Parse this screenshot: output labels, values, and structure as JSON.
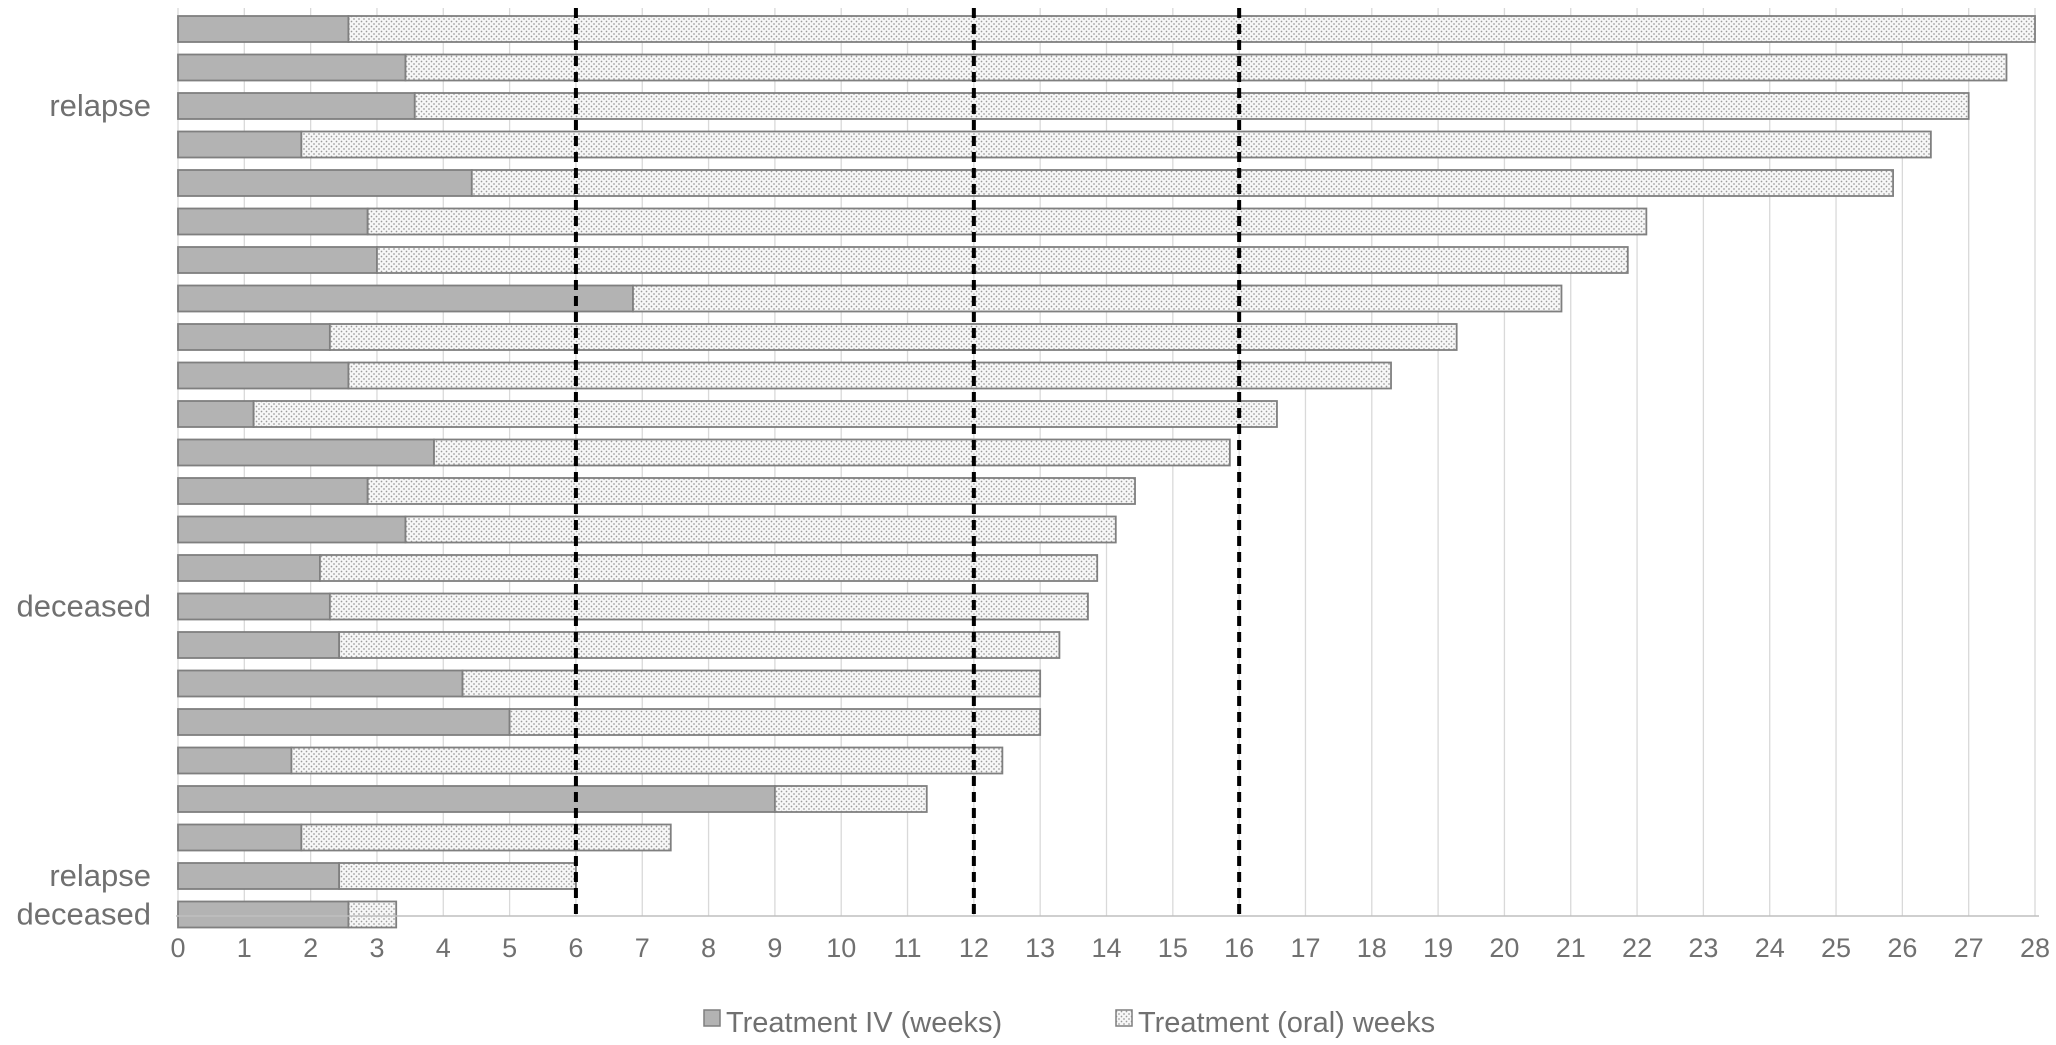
{
  "chart_data": {
    "type": "bar",
    "orientation": "horizontal",
    "stacked": true,
    "title": "",
    "xlabel": "",
    "ylabel": "",
    "xlim": [
      0,
      28
    ],
    "x_ticks": [
      "0",
      "1",
      "2",
      "3",
      "4",
      "5",
      "6",
      "7",
      "8",
      "9",
      "10",
      "11",
      "12",
      "13",
      "14",
      "15",
      "16",
      "17",
      "18",
      "19",
      "20",
      "21",
      "22",
      "23",
      "24",
      "25",
      "26",
      "27",
      "28"
    ],
    "grid": "vertical",
    "legend_position": "bottom",
    "reference_lines": [
      6,
      12,
      16
    ],
    "series": [
      {
        "name": "Treatment IV (weeks)",
        "color": "#b3b3b3",
        "pattern": "solid",
        "values": [
          2.57,
          3.43,
          3.57,
          1.86,
          4.43,
          2.86,
          3.0,
          6.86,
          2.29,
          2.57,
          1.14,
          3.86,
          2.86,
          3.43,
          2.14,
          2.29,
          2.43,
          4.29,
          5.0,
          1.71,
          9.0,
          1.86,
          2.43,
          2.57
        ]
      },
      {
        "name": "Treatment (oral) weeks",
        "color": "#f2f2f2",
        "pattern": "dotted",
        "values": [
          25.43,
          24.14,
          23.43,
          24.57,
          21.43,
          19.28,
          18.86,
          14.0,
          16.99,
          15.72,
          15.43,
          12.0,
          11.57,
          10.71,
          11.72,
          11.43,
          10.86,
          8.71,
          8.0,
          10.72,
          2.29,
          5.57,
          3.57,
          0.72
        ]
      }
    ],
    "row_labels": [
      {
        "text": "relapse",
        "row": 2
      },
      {
        "text": "deceased",
        "row": 15
      },
      {
        "text": "relapse",
        "row": 22
      },
      {
        "text": "deceased",
        "row": 23
      }
    ]
  }
}
